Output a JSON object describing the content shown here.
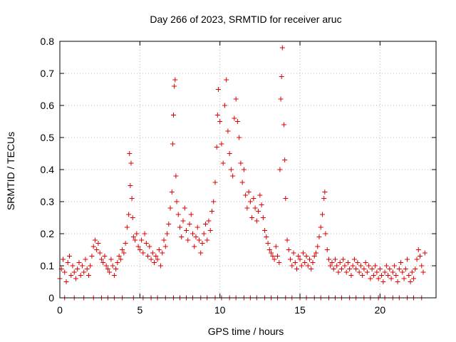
{
  "chart_data": {
    "type": "scatter",
    "title": "Day 266 of 2023, SRMTID for receiver aruc",
    "xlabel": "GPS time / hours",
    "ylabel": "SRMTID / TECUs",
    "xlim": [
      0,
      23.5
    ],
    "ylim": [
      0,
      0.8
    ],
    "xticks": [
      0,
      5,
      10,
      15,
      20
    ],
    "xtick_labels": [
      "0",
      "5",
      "10",
      "15",
      "20"
    ],
    "yticks": [
      0,
      0.1,
      0.2,
      0.3,
      0.4,
      0.5,
      0.6,
      0.7,
      0.8
    ],
    "ytick_labels": [
      "0",
      "0.1",
      "0.2",
      "0.3",
      "0.4",
      "0.5",
      "0.6",
      "0.7",
      "0.8"
    ],
    "grid": true,
    "marker": "+",
    "color": "#e00000",
    "series": [
      {
        "name": "SRMTID",
        "points": [
          [
            0.0,
            0.06
          ],
          [
            0.1,
            0.09
          ],
          [
            0.2,
            0.12
          ],
          [
            0.3,
            0.08
          ],
          [
            0.4,
            0.05
          ],
          [
            0.5,
            0.11
          ],
          [
            0.6,
            0.13
          ],
          [
            0.7,
            0.07
          ],
          [
            0.8,
            0.1
          ],
          [
            0.9,
            0.08
          ],
          [
            1.0,
            0.06
          ],
          [
            1.1,
            0.09
          ],
          [
            1.2,
            0.11
          ],
          [
            1.3,
            0.07
          ],
          [
            1.4,
            0.1
          ],
          [
            1.5,
            0.08
          ],
          [
            1.6,
            0.12
          ],
          [
            1.7,
            0.09
          ],
          [
            1.8,
            0.07
          ],
          [
            1.9,
            0.1
          ],
          [
            2.0,
            0.13
          ],
          [
            2.1,
            0.16
          ],
          [
            2.2,
            0.18
          ],
          [
            2.3,
            0.15
          ],
          [
            2.4,
            0.17
          ],
          [
            2.5,
            0.14
          ],
          [
            2.6,
            0.12
          ],
          [
            2.7,
            0.11
          ],
          [
            2.8,
            0.13
          ],
          [
            2.9,
            0.1
          ],
          [
            3.0,
            0.09
          ],
          [
            3.1,
            0.08
          ],
          [
            3.2,
            0.12
          ],
          [
            3.3,
            0.1
          ],
          [
            3.4,
            0.07
          ],
          [
            3.5,
            0.09
          ],
          [
            3.6,
            0.11
          ],
          [
            3.7,
            0.13
          ],
          [
            3.8,
            0.12
          ],
          [
            3.9,
            0.15
          ],
          [
            4.0,
            0.14
          ],
          [
            4.1,
            0.17
          ],
          [
            4.2,
            0.22
          ],
          [
            4.3,
            0.26
          ],
          [
            4.4,
            0.35
          ],
          [
            4.35,
            0.45
          ],
          [
            4.45,
            0.42
          ],
          [
            4.5,
            0.31
          ],
          [
            4.55,
            0.25
          ],
          [
            4.6,
            0.19
          ],
          [
            4.7,
            0.18
          ],
          [
            4.8,
            0.2
          ],
          [
            4.9,
            0.16
          ],
          [
            5.0,
            0.15
          ],
          [
            5.1,
            0.18
          ],
          [
            5.2,
            0.14
          ],
          [
            5.3,
            0.2
          ],
          [
            5.4,
            0.17
          ],
          [
            5.5,
            0.13
          ],
          [
            5.6,
            0.16
          ],
          [
            5.7,
            0.12
          ],
          [
            5.8,
            0.14
          ],
          [
            5.9,
            0.11
          ],
          [
            6.0,
            0.13
          ],
          [
            6.1,
            0.12
          ],
          [
            6.2,
            0.15
          ],
          [
            6.3,
            0.1
          ],
          [
            6.4,
            0.14
          ],
          [
            6.5,
            0.18
          ],
          [
            6.6,
            0.16
          ],
          [
            6.7,
            0.2
          ],
          [
            6.8,
            0.23
          ],
          [
            6.9,
            0.28
          ],
          [
            7.0,
            0.33
          ],
          [
            7.05,
            0.48
          ],
          [
            7.1,
            0.57
          ],
          [
            7.15,
            0.66
          ],
          [
            7.2,
            0.68
          ],
          [
            7.25,
            0.38
          ],
          [
            7.3,
            0.3
          ],
          [
            7.4,
            0.26
          ],
          [
            7.5,
            0.22
          ],
          [
            7.6,
            0.19
          ],
          [
            7.7,
            0.24
          ],
          [
            7.8,
            0.28
          ],
          [
            7.9,
            0.21
          ],
          [
            8.0,
            0.18
          ],
          [
            8.1,
            0.23
          ],
          [
            8.2,
            0.26
          ],
          [
            8.3,
            0.2
          ],
          [
            8.4,
            0.16
          ],
          [
            8.5,
            0.19
          ],
          [
            8.6,
            0.22
          ],
          [
            8.7,
            0.18
          ],
          [
            8.8,
            0.14
          ],
          [
            8.9,
            0.17
          ],
          [
            9.0,
            0.2
          ],
          [
            9.1,
            0.23
          ],
          [
            9.2,
            0.18
          ],
          [
            9.3,
            0.24
          ],
          [
            9.4,
            0.21
          ],
          [
            9.5,
            0.27
          ],
          [
            9.6,
            0.3
          ],
          [
            9.7,
            0.36
          ],
          [
            9.8,
            0.47
          ],
          [
            9.85,
            0.57
          ],
          [
            9.9,
            0.65
          ],
          [
            10.0,
            0.55
          ],
          [
            10.1,
            0.48
          ],
          [
            10.2,
            0.42
          ],
          [
            10.3,
            0.6
          ],
          [
            10.4,
            0.68
          ],
          [
            10.5,
            0.52
          ],
          [
            10.6,
            0.45
          ],
          [
            10.7,
            0.4
          ],
          [
            10.8,
            0.38
          ],
          [
            10.9,
            0.56
          ],
          [
            11.0,
            0.62
          ],
          [
            11.1,
            0.55
          ],
          [
            11.2,
            0.5
          ],
          [
            11.3,
            0.42
          ],
          [
            11.4,
            0.36
          ],
          [
            11.5,
            0.4
          ],
          [
            11.6,
            0.32
          ],
          [
            11.7,
            0.28
          ],
          [
            11.8,
            0.33
          ],
          [
            11.9,
            0.3
          ],
          [
            12.0,
            0.25
          ],
          [
            12.1,
            0.31
          ],
          [
            12.2,
            0.28
          ],
          [
            12.3,
            0.24
          ],
          [
            12.4,
            0.27
          ],
          [
            12.5,
            0.32
          ],
          [
            12.6,
            0.29
          ],
          [
            12.7,
            0.25
          ],
          [
            12.8,
            0.21
          ],
          [
            12.9,
            0.19
          ],
          [
            13.0,
            0.17
          ],
          [
            13.1,
            0.15
          ],
          [
            13.2,
            0.14
          ],
          [
            13.3,
            0.13
          ],
          [
            13.4,
            0.12
          ],
          [
            13.5,
            0.16
          ],
          [
            13.6,
            0.13
          ],
          [
            13.7,
            0.11
          ],
          [
            13.75,
            0.4
          ],
          [
            13.8,
            0.62
          ],
          [
            13.85,
            0.69
          ],
          [
            13.9,
            0.78
          ],
          [
            14.0,
            0.54
          ],
          [
            14.05,
            0.43
          ],
          [
            14.1,
            0.31
          ],
          [
            14.2,
            0.18
          ],
          [
            14.3,
            0.15
          ],
          [
            14.4,
            0.12
          ],
          [
            14.5,
            0.1
          ],
          [
            14.6,
            0.14
          ],
          [
            14.7,
            0.11
          ],
          [
            14.8,
            0.09
          ],
          [
            14.9,
            0.13
          ],
          [
            15.0,
            0.12
          ],
          [
            15.1,
            0.1
          ],
          [
            15.2,
            0.14
          ],
          [
            15.3,
            0.11
          ],
          [
            15.4,
            0.13
          ],
          [
            15.5,
            0.1
          ],
          [
            15.6,
            0.12
          ],
          [
            15.7,
            0.09
          ],
          [
            15.8,
            0.11
          ],
          [
            15.9,
            0.13
          ],
          [
            16.0,
            0.14
          ],
          [
            16.1,
            0.16
          ],
          [
            16.2,
            0.19
          ],
          [
            16.3,
            0.22
          ],
          [
            16.4,
            0.26
          ],
          [
            16.5,
            0.31
          ],
          [
            16.55,
            0.33
          ],
          [
            16.6,
            0.2
          ],
          [
            16.7,
            0.15
          ],
          [
            16.8,
            0.12
          ],
          [
            16.9,
            0.1
          ],
          [
            17.0,
            0.11
          ],
          [
            17.1,
            0.09
          ],
          [
            17.2,
            0.12
          ],
          [
            17.3,
            0.1
          ],
          [
            17.4,
            0.08
          ],
          [
            17.5,
            0.11
          ],
          [
            17.6,
            0.09
          ],
          [
            17.7,
            0.12
          ],
          [
            17.8,
            0.1
          ],
          [
            17.9,
            0.08
          ],
          [
            18.0,
            0.11
          ],
          [
            18.1,
            0.09
          ],
          [
            18.2,
            0.07
          ],
          [
            18.3,
            0.1
          ],
          [
            18.4,
            0.12
          ],
          [
            18.5,
            0.09
          ],
          [
            18.6,
            0.11
          ],
          [
            18.7,
            0.08
          ],
          [
            18.8,
            0.1
          ],
          [
            18.9,
            0.07
          ],
          [
            19.0,
            0.09
          ],
          [
            19.1,
            0.11
          ],
          [
            19.2,
            0.08
          ],
          [
            19.3,
            0.1
          ],
          [
            19.4,
            0.06
          ],
          [
            19.5,
            0.09
          ],
          [
            19.6,
            0.07
          ],
          [
            19.7,
            0.1
          ],
          [
            19.8,
            0.08
          ],
          [
            19.9,
            0.06
          ],
          [
            20.0,
            0.09
          ],
          [
            20.1,
            0.07
          ],
          [
            20.2,
            0.05
          ],
          [
            20.3,
            0.08
          ],
          [
            20.4,
            0.1
          ],
          [
            20.5,
            0.07
          ],
          [
            20.6,
            0.09
          ],
          [
            20.7,
            0.06
          ],
          [
            20.8,
            0.08
          ],
          [
            20.9,
            0.1
          ],
          [
            21.0,
            0.07
          ],
          [
            21.1,
            0.05
          ],
          [
            21.2,
            0.09
          ],
          [
            21.3,
            0.11
          ],
          [
            21.4,
            0.08
          ],
          [
            21.5,
            0.06
          ],
          [
            21.6,
            0.09
          ],
          [
            21.7,
            0.12
          ],
          [
            21.8,
            0.07
          ],
          [
            21.9,
            0.05
          ],
          [
            22.0,
            0.08
          ],
          [
            22.1,
            0.06
          ],
          [
            22.2,
            0.09
          ],
          [
            22.3,
            0.12
          ],
          [
            22.4,
            0.15
          ],
          [
            22.5,
            0.13
          ],
          [
            22.6,
            0.1
          ],
          [
            22.7,
            0.08
          ],
          [
            22.8,
            0.14
          ]
        ],
        "zero_points_x": [
          0.3,
          0.9,
          1.5,
          2.1,
          2.6,
          3.0,
          3.4,
          3.9,
          4.6,
          5.2,
          5.7,
          6.1,
          6.6,
          7.1,
          7.5,
          7.9,
          8.3,
          8.8,
          9.2,
          9.7,
          10.1,
          10.6,
          11.0,
          11.5,
          11.9,
          12.3,
          12.8,
          13.2,
          13.6,
          14.1,
          14.5,
          15.0,
          15.4,
          15.9,
          16.3,
          16.8,
          17.2,
          17.6,
          18.1,
          18.5,
          19.0,
          19.4,
          19.9,
          20.3,
          20.8,
          21.2,
          21.7,
          22.1,
          22.6
        ]
      }
    ]
  }
}
